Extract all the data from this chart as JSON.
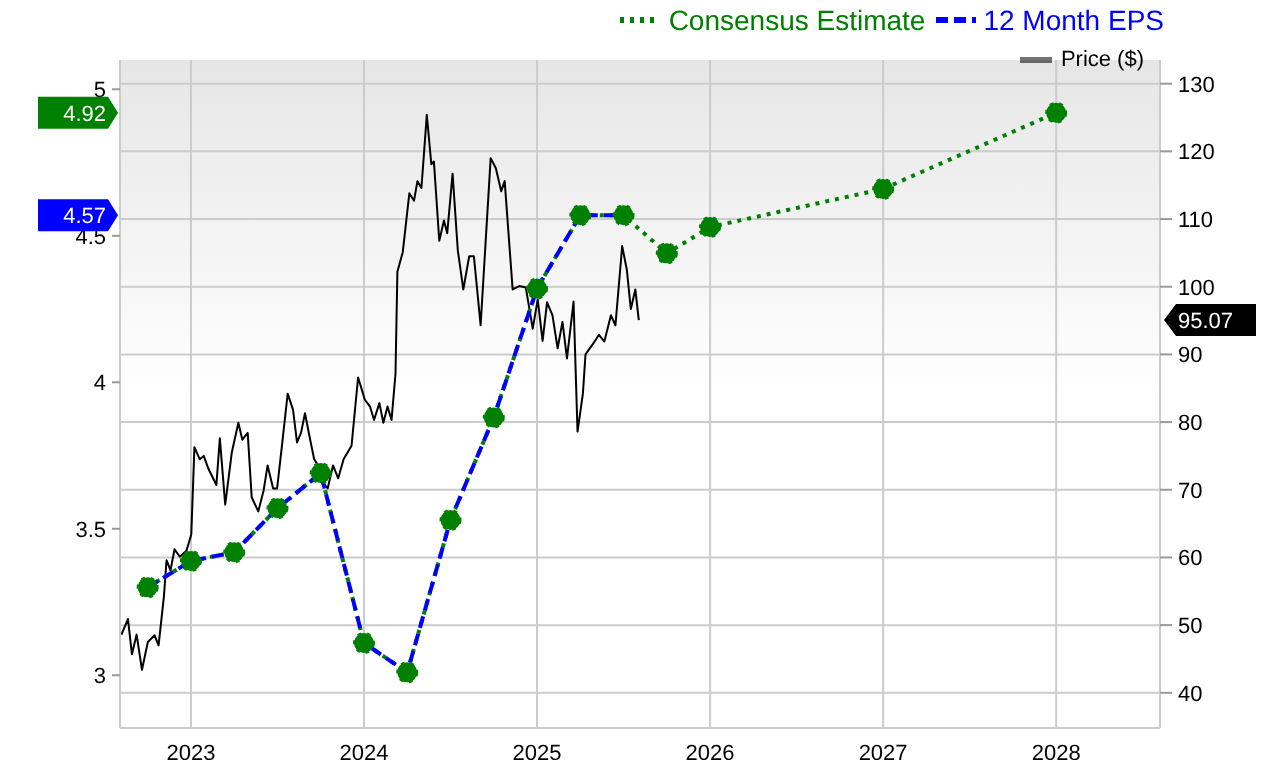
{
  "chart_data": {
    "type": "line",
    "xlim": [
      2022.59,
      2028.6
    ],
    "xticks": [
      2023,
      2024,
      2025,
      2026,
      2027,
      2028
    ],
    "ylim": [
      2.82,
      5.1
    ],
    "yticks": [
      3,
      3.5,
      4,
      4.5,
      5,
      {
        "value": 4.57,
        "label": "4.57"
      },
      {
        "value": 4.92,
        "label": "4.92"
      }
    ],
    "y2lim": [
      34.8,
      133.5
    ],
    "y2ticks": [
      40,
      50,
      60,
      70,
      80,
      90,
      100,
      110,
      120,
      130,
      {
        "value": 95.07,
        "label": "95.07"
      }
    ],
    "grid": true,
    "legend": "top right",
    "series": [
      {
        "name": "Price ($)",
        "axis": "y2",
        "color": "#000000",
        "line_style": "solid",
        "marker": "none",
        "x": [
          2022.598,
          2022.636,
          2022.659,
          2022.686,
          2022.717,
          2022.751,
          2022.79,
          2022.813,
          2022.844,
          2022.859,
          2022.882,
          2022.905,
          2022.936,
          2022.974,
          2023.002,
          2023.02,
          2023.051,
          2023.074,
          2023.101,
          2023.147,
          2023.167,
          2023.198,
          2023.236,
          2023.274,
          2023.297,
          2023.328,
          2023.351,
          2023.389,
          2023.42,
          2023.443,
          2023.475,
          2023.498,
          2023.528,
          2023.559,
          2023.59,
          2023.613,
          2023.636,
          2023.659,
          2023.689,
          2023.712,
          2023.735,
          2023.758,
          2023.79,
          2023.821,
          2023.851,
          2023.882,
          2023.905,
          2023.928,
          2023.966,
          2024.005,
          2024.035,
          2024.058,
          2024.089,
          2024.112,
          2024.136,
          2024.159,
          2024.182,
          2024.193,
          2024.224,
          2024.262,
          2024.289,
          2024.309,
          2024.332,
          2024.363,
          2024.389,
          2024.404,
          2024.435,
          2024.462,
          2024.481,
          2024.512,
          2024.542,
          2024.574,
          2024.608,
          2024.635,
          2024.674,
          2024.732,
          2024.762,
          2024.793,
          2024.813,
          2024.859,
          2024.897,
          2024.935,
          2024.975,
          2025.004,
          2025.032,
          2025.058,
          2025.089,
          2025.119,
          2025.147,
          2025.173,
          2025.211,
          2025.234,
          2025.265,
          2025.28,
          2025.319,
          2025.358,
          2025.389,
          2025.427,
          2025.453,
          2025.492,
          2025.519,
          2025.542,
          2025.568,
          2025.588
        ],
        "values": [
          48.6,
          50.9,
          45.7,
          48.6,
          43.4,
          47.5,
          48.5,
          47.0,
          54.3,
          59.6,
          58.1,
          61.2,
          60.1,
          61.0,
          63.4,
          76.3,
          74.5,
          75.0,
          73.1,
          70.7,
          77.6,
          67.8,
          75.5,
          79.9,
          77.4,
          78.4,
          68.9,
          66.8,
          69.9,
          73.6,
          70.2,
          70.2,
          77.0,
          84.2,
          81.8,
          77.0,
          78.4,
          81.3,
          77.4,
          74.5,
          73.6,
          71.2,
          70.2,
          73.6,
          71.7,
          74.5,
          75.5,
          76.5,
          86.6,
          83.3,
          82.3,
          80.3,
          82.8,
          79.9,
          82.3,
          80.3,
          87.1,
          102.2,
          105.1,
          113.8,
          112.7,
          115.6,
          114.6,
          125.4,
          118.1,
          118.5,
          106.8,
          109.8,
          107.9,
          116.7,
          105.4,
          99.6,
          104.5,
          104.5,
          94.3,
          119.0,
          117.5,
          114.1,
          115.6,
          99.6,
          100.1,
          99.9,
          93.8,
          98.1,
          92.0,
          97.7,
          95.8,
          90.9,
          94.8,
          89.4,
          97.8,
          78.6,
          84.2,
          90.0,
          91.4,
          92.9,
          91.9,
          95.8,
          94.3,
          106.0,
          102.5,
          96.7,
          99.6,
          95.07
        ]
      },
      {
        "name": "Consensus Estimate",
        "axis": "y",
        "color": "#008000",
        "line_style": "dotted",
        "marker": "circle",
        "x": [
          2022.75,
          2023.0,
          2023.25,
          2023.5,
          2023.75,
          2024.0,
          2024.25,
          2024.5,
          2024.75,
          2025.0,
          2025.25,
          2025.5,
          2025.75,
          2026.0,
          2027.0,
          2028.0
        ],
        "values": [
          3.3,
          3.39,
          3.42,
          3.57,
          3.69,
          3.11,
          3.01,
          3.53,
          3.88,
          4.32,
          4.57,
          4.57,
          4.44,
          4.53,
          4.66,
          4.92
        ]
      },
      {
        "name": "12 Month EPS",
        "axis": "y",
        "color": "#0000ff",
        "line_style": "dashed",
        "marker": "none",
        "x": [
          2022.75,
          2023.0,
          2023.25,
          2023.5,
          2023.75,
          2024.0,
          2024.25,
          2024.5,
          2024.75,
          2025.0,
          2025.25,
          2025.5
        ],
        "values": [
          3.3,
          3.39,
          3.42,
          3.57,
          3.69,
          3.11,
          3.01,
          3.53,
          3.88,
          4.32,
          4.57,
          4.57
        ]
      }
    ]
  }
}
